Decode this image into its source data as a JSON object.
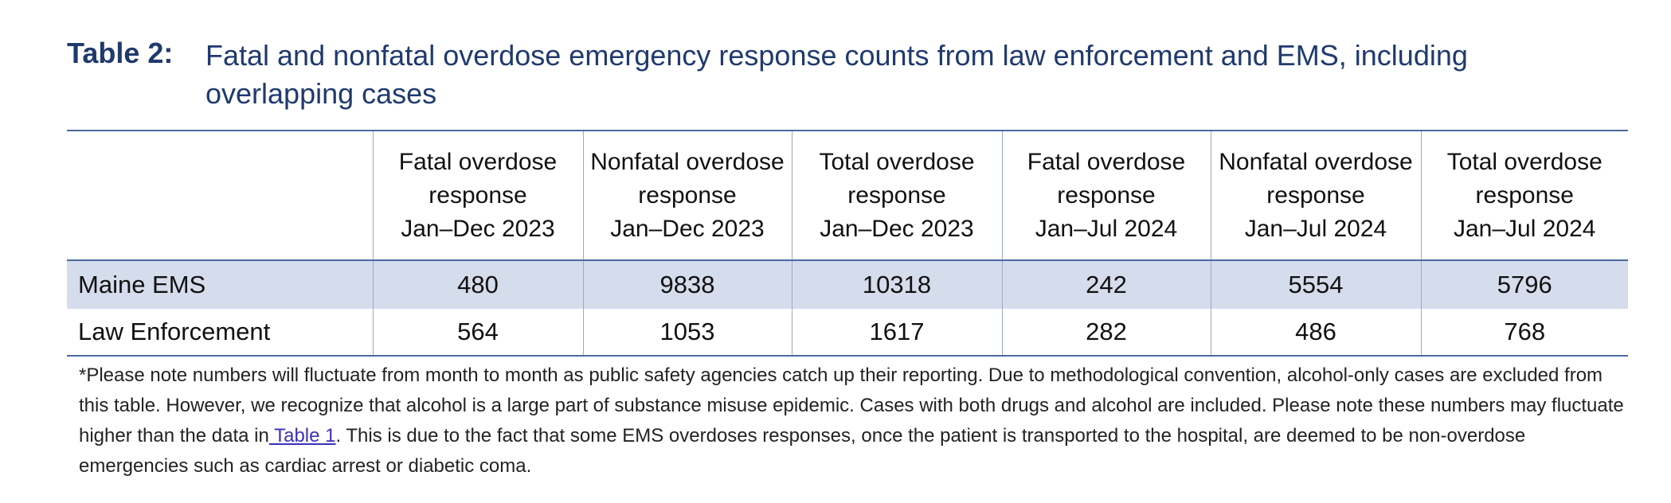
{
  "title": {
    "label": "Table 2:",
    "text": "Fatal and nonfatal overdose emergency response counts from law enforcement and EMS, including overlapping cases"
  },
  "table": {
    "columns": [
      "Fatal overdose\nresponse\nJan–Dec 2023",
      "Nonfatal overdose\nresponse\nJan–Dec 2023",
      "Total overdose\nresponse\nJan–Dec 2023",
      "Fatal overdose\nresponse\nJan–Jul 2024",
      "Nonfatal overdose\nresponse\nJan–Jul 2024",
      "Total overdose\nresponse\nJan–Jul 2024"
    ],
    "rows": [
      {
        "name": "Maine EMS",
        "values": [
          480,
          9838,
          10318,
          242,
          5554,
          5796
        ]
      },
      {
        "name": "Law Enforcement",
        "values": [
          564,
          1053,
          1617,
          282,
          486,
          768
        ]
      }
    ]
  },
  "footnote": {
    "before": "*Please note numbers will fluctuate from month to month as public safety agencies catch up their reporting. Due to methodological convention, alcohol-only cases are excluded from this table. However, we recognize that alcohol is a large part of substance misuse epidemic. Cases with both drugs and alcohol are included. Please note these numbers may fluctuate higher than the data in",
    "link": " Table 1",
    "after": ". This is due to the fact that some EMS overdoses responses, once the patient is transported to the hospital, are deemed to be non-overdose emergencies such as cardiac arrest or diabetic coma."
  }
}
